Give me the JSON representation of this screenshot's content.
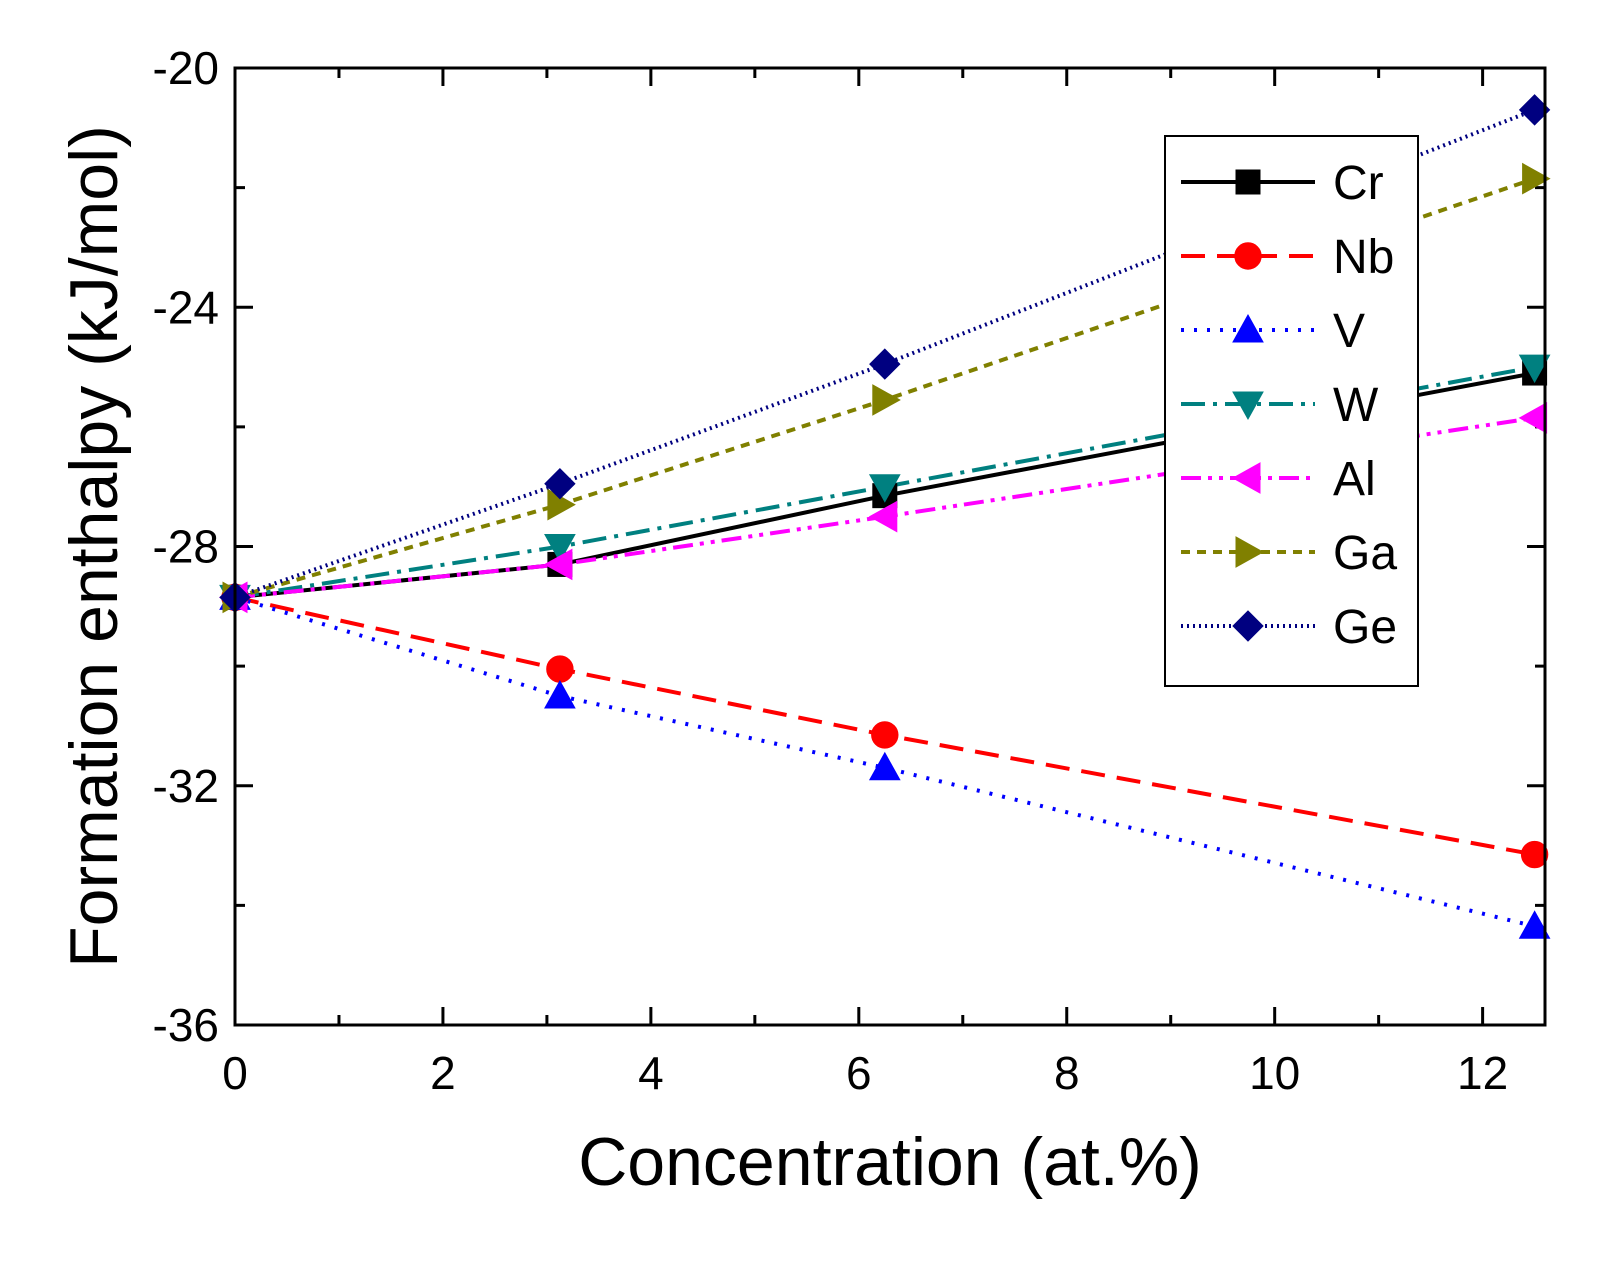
{
  "chart_data": {
    "type": "line",
    "title": "",
    "xlabel": "Concentration (at.%)",
    "ylabel": "Formation enthalpy (kJ/mol)",
    "xlim": [
      0,
      12.6
    ],
    "ylim": [
      -36,
      -20
    ],
    "xticks": [
      0,
      2,
      4,
      6,
      8,
      10,
      12
    ],
    "xtick_labels": [
      "0",
      "2",
      "4",
      "6",
      "8",
      "10",
      "12"
    ],
    "yticks": [
      -20,
      -24,
      -28,
      -32,
      -36
    ],
    "ytick_labels": [
      "-20",
      "-24",
      "-28",
      "-32",
      "-36"
    ],
    "legend_position": "top-right",
    "x": [
      0,
      3.125,
      6.25,
      12.5
    ],
    "series": [
      {
        "name": "Cr",
        "values": [
          -28.85,
          -28.3,
          -27.15,
          -25.1
        ],
        "color": "#000000",
        "marker": "square",
        "dash": ""
      },
      {
        "name": "Nb",
        "values": [
          -28.85,
          -30.05,
          -31.15,
          -33.15
        ],
        "color": "#ff0000",
        "marker": "circle",
        "dash": "24 12"
      },
      {
        "name": "V",
        "values": [
          -28.85,
          -30.5,
          -31.7,
          -34.35
        ],
        "color": "#0000ff",
        "marker": "triangle-up",
        "dash": "3 10"
      },
      {
        "name": "W",
        "values": [
          -28.85,
          -28.0,
          -27.0,
          -25.0
        ],
        "color": "#008080",
        "marker": "triangle-down",
        "dash": "24 8 4 8"
      },
      {
        "name": "Al",
        "values": [
          -28.85,
          -28.3,
          -27.5,
          -25.85
        ],
        "color": "#ff00ff",
        "marker": "triangle-left",
        "dash": "20 7 4 7 4 7"
      },
      {
        "name": "Ga",
        "values": [
          -28.85,
          -27.3,
          -25.55,
          -21.85
        ],
        "color": "#808000",
        "marker": "triangle-right",
        "dash": "9 7"
      },
      {
        "name": "Ge",
        "values": [
          -28.85,
          -26.95,
          -24.95,
          -20.7
        ],
        "color": "#000080",
        "marker": "diamond",
        "dash": "2 4"
      }
    ]
  }
}
